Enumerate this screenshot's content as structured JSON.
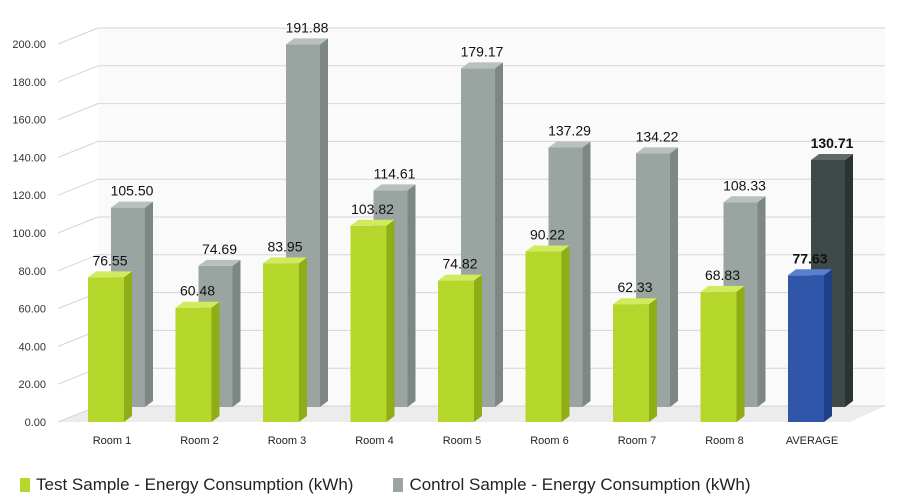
{
  "chart_data": {
    "type": "bar",
    "title": "",
    "xlabel": "",
    "ylabel": "",
    "ylim": [
      0,
      200
    ],
    "yticks": [
      "0.00",
      "20.00",
      "40.00",
      "60.00",
      "80.00",
      "100.00",
      "120.00",
      "140.00",
      "160.00",
      "180.00",
      "200.00"
    ],
    "grid": true,
    "categories": [
      "Room 1",
      "Room 2",
      "Room 3",
      "Room 4",
      "Room 5",
      "Room 6",
      "Room 7",
      "Room 8",
      "AVERAGE"
    ],
    "series": [
      {
        "name": "Test Sample - Energy Consumption (kWh)",
        "values": [
          76.55,
          60.48,
          83.95,
          103.82,
          74.82,
          90.22,
          62.33,
          68.83,
          77.63
        ],
        "labels": [
          "76.55",
          "60.48",
          "83.95",
          "103.82",
          "74.82",
          "90.22",
          "62.33",
          "68.83",
          "77.63"
        ]
      },
      {
        "name": "Control Sample - Energy Consumption (kWh)",
        "values": [
          105.5,
          74.69,
          191.88,
          114.61,
          179.17,
          137.29,
          134.22,
          108.33,
          130.71
        ],
        "labels": [
          "105.50",
          "74.69",
          "191.88",
          "114.61",
          "179.17",
          "137.29",
          "134.22",
          "108.33",
          "130.71"
        ]
      }
    ],
    "legend_position": "bottom",
    "colors": {
      "test": "#b5d62a",
      "test_side": "#8fae16",
      "test_top": "#d2ea5e",
      "control": "#9aa5a1",
      "control_side": "#7d8884",
      "control_top": "#b8c1be",
      "avg_test": "#2f56a8",
      "avg_test_side": "#1f3f86",
      "avg_test_top": "#5a7fd0",
      "avg_control": "#3f4948",
      "avg_control_side": "#2c3433",
      "avg_control_top": "#5f6a69",
      "grid": "#d6d6d6",
      "floor": "#ececec"
    }
  }
}
